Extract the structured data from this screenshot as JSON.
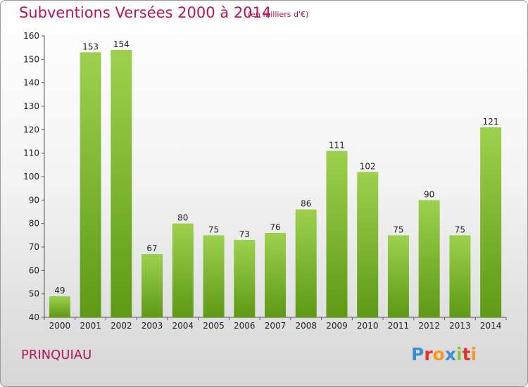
{
  "header": {
    "title": "Subventions Versées 2000 à 2014",
    "subtitle": "(en milliers d'€)"
  },
  "footer": {
    "commune": "PRINQUIAU",
    "logo_text": "Proxiti"
  },
  "colors": {
    "title": "#b5135a",
    "bar_top": "#9dd14d",
    "bar_bottom": "#5e9a14",
    "logo_letters": [
      "#3b8fd0",
      "#e4322b",
      "#f39a1f",
      "#3b8fd0",
      "#8cc63f",
      "#e4322b",
      "#f39a1f"
    ]
  },
  "chart_data": {
    "type": "bar",
    "title": "Subventions Versées 2000 à 2014",
    "subtitle": "(en milliers d'€)",
    "xlabel": "",
    "ylabel": "",
    "categories": [
      "2000",
      "2001",
      "2002",
      "2003",
      "2004",
      "2005",
      "2006",
      "2007",
      "2008",
      "2009",
      "2010",
      "2011",
      "2012",
      "2013",
      "2014"
    ],
    "values": [
      49,
      153,
      154,
      67,
      80,
      75,
      73,
      76,
      86,
      111,
      102,
      75,
      90,
      75,
      121
    ],
    "ylim": [
      40,
      160
    ],
    "yticks": [
      40,
      50,
      60,
      70,
      80,
      90,
      100,
      110,
      120,
      130,
      140,
      150,
      160
    ],
    "grid": false,
    "legend": "none"
  }
}
